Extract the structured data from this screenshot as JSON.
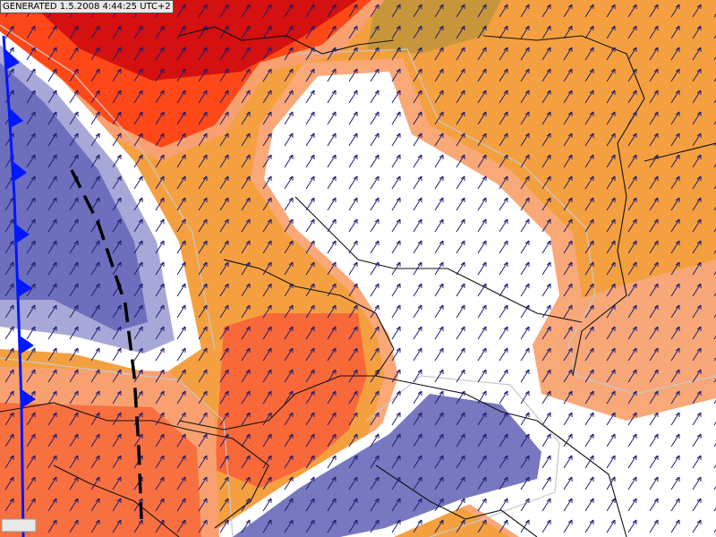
{
  "header": {
    "generated": "GENERATED 1.5.2008 4:44:25 UTC+2"
  }
}
